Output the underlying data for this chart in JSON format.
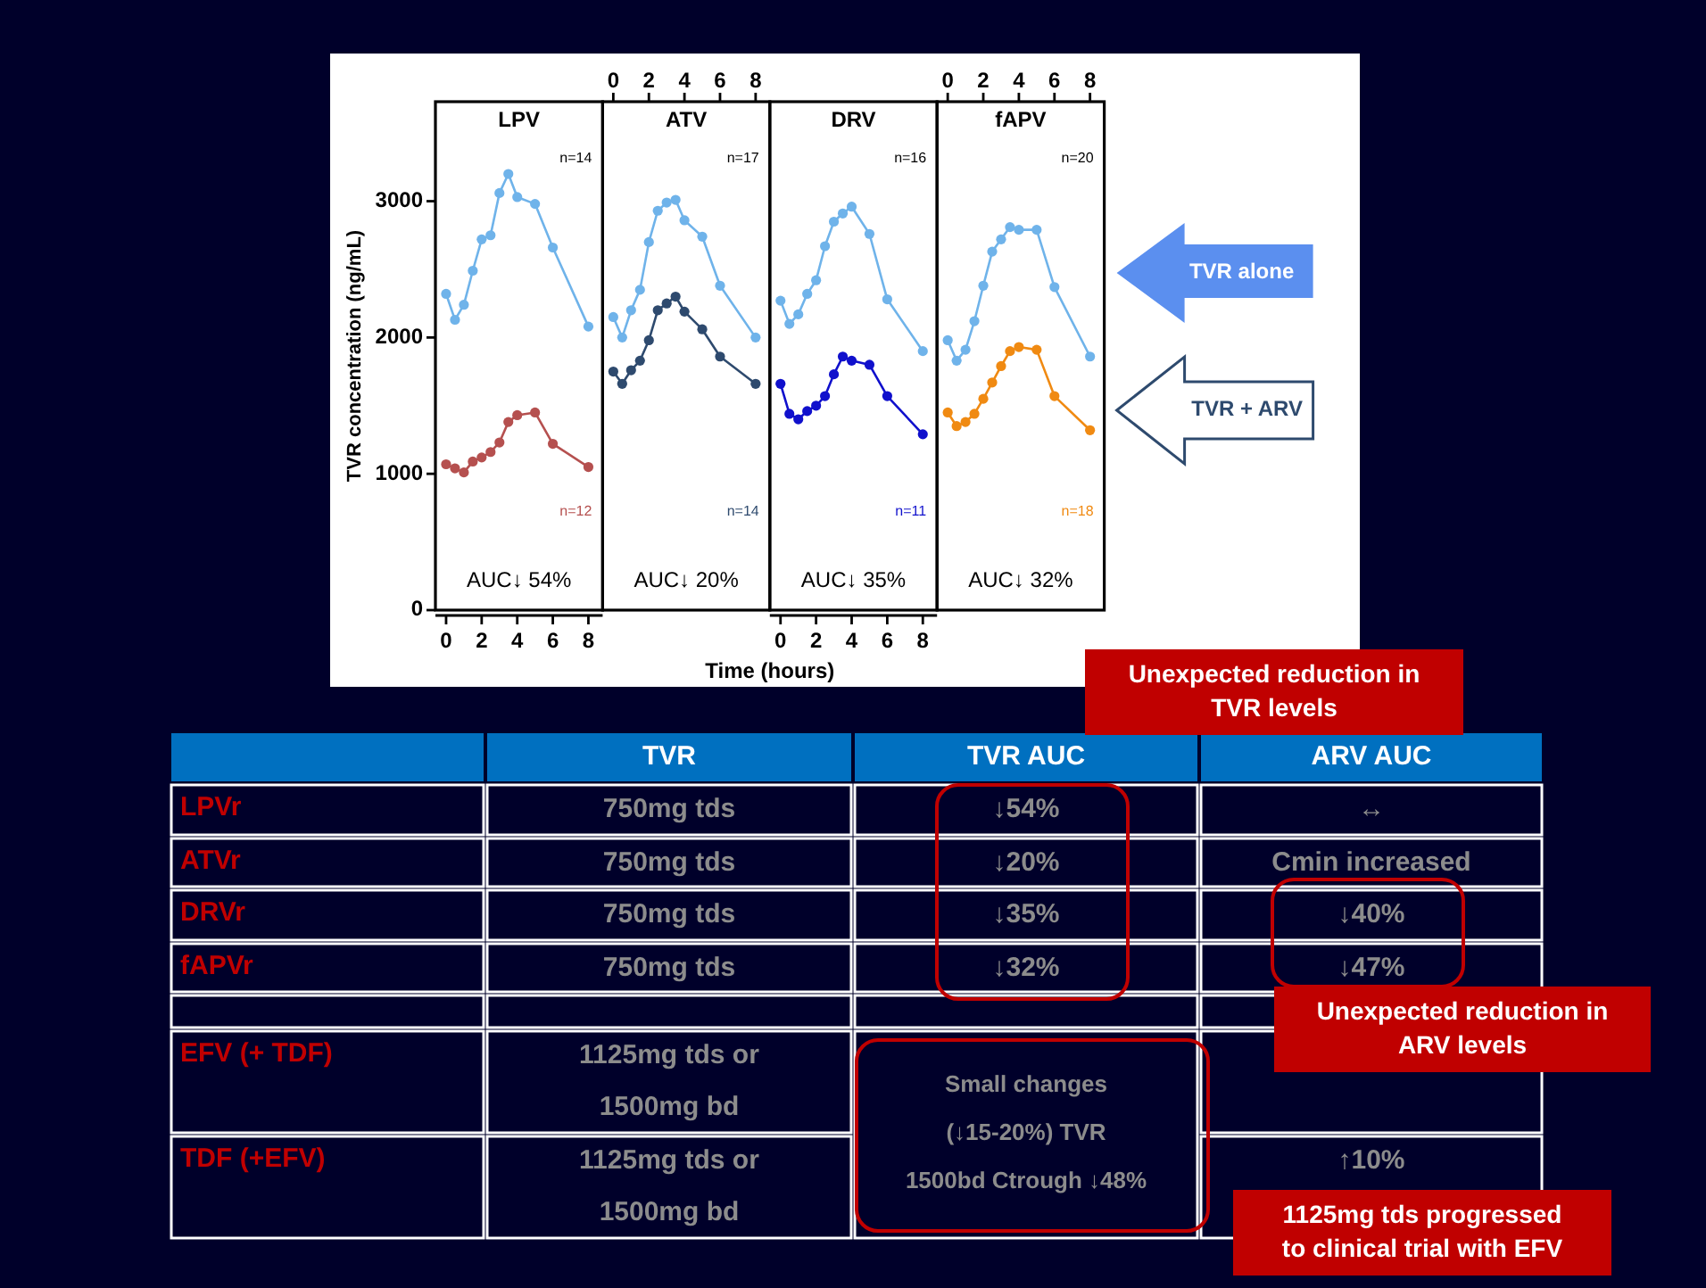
{
  "chart_data": [
    {
      "type": "line",
      "title": "LPV",
      "ylabel": "TVR concentration (ng/mL)",
      "xlim": [
        -0.6,
        8.8
      ],
      "xticks": [
        0,
        2,
        4,
        6,
        8
      ],
      "ylim": [
        0,
        3730
      ],
      "yticks": [
        0,
        1000,
        2000,
        3000
      ],
      "marker": "circle",
      "line_style": "solid",
      "grid": false,
      "x": [
        0,
        0.5,
        1,
        1.5,
        2,
        2.5,
        3,
        3.5,
        4,
        5,
        6,
        8
      ],
      "series": [
        {
          "color": "#6fb3ea",
          "values": [
            2320,
            2130,
            2240,
            2490,
            2720,
            2750,
            3060,
            3200,
            3030,
            2980,
            2660,
            2080
          ]
        },
        {
          "color": "#b5504f",
          "values": [
            1070,
            1040,
            1010,
            1090,
            1120,
            1160,
            1230,
            1380,
            1430,
            1450,
            1220,
            1050
          ]
        }
      ],
      "annotations": [
        "n=14",
        "n=12",
        "AUC↓ 54%"
      ]
    },
    {
      "type": "line",
      "title": "ATV",
      "xlim": [
        -0.6,
        8.8
      ],
      "x2lim": [
        -0.6,
        8.8
      ],
      "x2ticks": [
        0,
        2,
        4,
        6,
        8
      ],
      "ylim": [
        0,
        3730
      ],
      "tick_labels": false,
      "marker": "circle",
      "line_style": "solid",
      "grid": false,
      "x": [
        0,
        0.5,
        1,
        1.5,
        2,
        2.5,
        3,
        3.5,
        4,
        5,
        6,
        8
      ],
      "series": [
        {
          "color": "#6fb3ea",
          "values": [
            2150,
            2000,
            2200,
            2350,
            2700,
            2930,
            2990,
            3010,
            2860,
            2740,
            2380,
            2000
          ]
        },
        {
          "color": "#2e4a6e",
          "values": [
            1750,
            1660,
            1760,
            1830,
            1980,
            2200,
            2250,
            2300,
            2190,
            2060,
            1860,
            1660
          ]
        }
      ],
      "annotations": [
        "n=17",
        "n=14",
        "AUC↓ 20%"
      ]
    },
    {
      "type": "line",
      "title": "DRV",
      "xlabel": "Time (hours)",
      "xlim": [
        -0.6,
        8.8
      ],
      "xticks": [
        0,
        2,
        4,
        6,
        8
      ],
      "ylim": [
        0,
        3730
      ],
      "tick_labels": "x",
      "marker": "circle",
      "line_style": "solid",
      "grid": false,
      "x": [
        0,
        0.5,
        1,
        1.5,
        2,
        2.5,
        3,
        3.5,
        4,
        5,
        6,
        8
      ],
      "series": [
        {
          "color": "#6fb3ea",
          "values": [
            2270,
            2100,
            2170,
            2320,
            2420,
            2670,
            2850,
            2910,
            2960,
            2760,
            2280,
            1900
          ]
        },
        {
          "color": "#1010cc",
          "values": [
            1660,
            1440,
            1400,
            1460,
            1500,
            1570,
            1730,
            1860,
            1830,
            1800,
            1570,
            1290
          ]
        }
      ],
      "annotations": [
        "n=16",
        "n=11",
        "AUC↓ 35%"
      ]
    },
    {
      "type": "line",
      "title": "fAPV",
      "xlim": [
        -0.6,
        8.8
      ],
      "x2lim": [
        -0.6,
        8.8
      ],
      "x2ticks": [
        0,
        2,
        4,
        6,
        8
      ],
      "ylim": [
        0,
        3730
      ],
      "tick_labels": false,
      "marker": "circle",
      "line_style": "solid",
      "grid": false,
      "x": [
        0,
        0.5,
        1,
        1.5,
        2,
        2.5,
        3,
        3.5,
        4,
        5,
        6,
        8
      ],
      "series": [
        {
          "color": "#6fb3ea",
          "values": [
            1980,
            1830,
            1910,
            2120,
            2380,
            2630,
            2720,
            2810,
            2790,
            2790,
            2370,
            1860
          ]
        },
        {
          "color": "#f08a12",
          "values": [
            1450,
            1350,
            1380,
            1440,
            1550,
            1670,
            1790,
            1900,
            1930,
            1910,
            1570,
            1320
          ]
        }
      ],
      "annotations": [
        "n=20",
        "n=18",
        "AUC↓ 32%",
        "TVR alone",
        "TVR + ARV"
      ]
    },
    {
      "type": "other",
      "categories": [
        null,
        "TVR",
        "TVR AUC",
        "ARV AUC"
      ],
      "y_categories": [
        "LPVr",
        "ATVr",
        "DRVr",
        "fAPVr",
        null,
        "EFV (+ TDF)",
        "TDF (+EFV)"
      ],
      "cell_labels": [
        [
          "750mg tds",
          "↓54%",
          "↔"
        ],
        [
          "750mg tds",
          "↓20%",
          "Cmin increased"
        ],
        [
          "750mg tds",
          "↓35%",
          "↓40%"
        ],
        [
          "750mg tds",
          "↓32%",
          "↓47%"
        ],
        [
          null,
          null,
          null
        ],
        [
          "1125mg tds or\n1500mg bd",
          "Small changes\n(↓15-20%) TVR\n1500bd Ctrough ↓48%",
          null
        ],
        [
          "1125mg tds or\n1500mg bd",
          null,
          "↑10%"
        ]
      ],
      "annotations": [
        "Unexpected reduction in\nTVR levels",
        "Unexpected reduction in\nARV levels",
        "1125mg tds progressed\nto clinical trial with EFV"
      ]
    }
  ]
}
